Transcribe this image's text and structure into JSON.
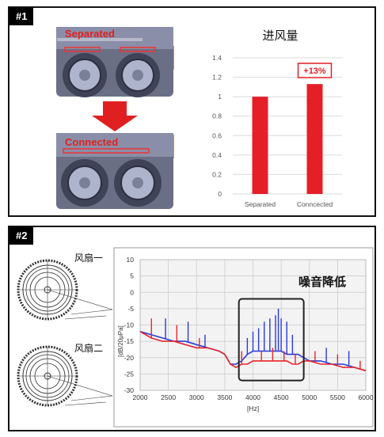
{
  "panel1": {
    "tag": "#1",
    "label_top": "Separated",
    "label_bottom": "Connected",
    "chart_title": "进风量",
    "badge": "+13%"
  },
  "panel2": {
    "tag": "#2",
    "fan1_label": "风扇一",
    "fan2_label": "风扇二",
    "annotation": "噪音降低",
    "ylabel": "[dB/20μPa]",
    "xlabel": "[Hz]"
  },
  "colors": {
    "red_bar": "#e41f26",
    "red_series": "#e8262c",
    "blue_series": "#2b3ad8",
    "highlight_box": "#222222"
  },
  "chart_data": [
    {
      "type": "bar",
      "title": "进风量",
      "categories": [
        "Separated",
        "Conncected"
      ],
      "values": [
        1.0,
        1.13
      ],
      "ylim": [
        0,
        1.4
      ],
      "yticks": [
        0,
        0.2,
        0.4,
        0.6,
        0.8,
        1,
        1.2,
        1.4
      ],
      "annotation": "+13%",
      "grid": true
    },
    {
      "type": "line",
      "xlabel": "[Hz]",
      "ylabel": "[dB/20μPa]",
      "xlim": [
        2000,
        6000
      ],
      "ylim": [
        -30,
        10
      ],
      "xticks": [
        2000,
        2500,
        3000,
        3500,
        4000,
        4500,
        5000,
        5500,
        6000
      ],
      "yticks": [
        10,
        5,
        0,
        -5,
        -10,
        -15,
        -20,
        -25,
        -30
      ],
      "grid": true,
      "annotation": "噪音降低",
      "highlight_range_x": [
        3750,
        4900
      ],
      "highlight_range_y": [
        -27,
        -2
      ],
      "series": [
        {
          "color": "#2b3ad8",
          "x": [
            2000,
            2200,
            2400,
            2600,
            2800,
            3000,
            3200,
            3400,
            3500,
            3600,
            3700,
            3800,
            3900,
            4000,
            4100,
            4200,
            4300,
            4400,
            4500,
            4600,
            4700,
            4800,
            4900,
            5000,
            5200,
            5400,
            5600,
            5800,
            6000
          ],
          "y": [
            -12,
            -13,
            -14,
            -15,
            -15,
            -16,
            -17,
            -18,
            -19,
            -22,
            -22,
            -21,
            -19,
            -18,
            -18,
            -18,
            -18,
            -18,
            -18,
            -19,
            -19,
            -19,
            -20,
            -21,
            -21,
            -22,
            -22,
            -23,
            -24
          ],
          "spikes": [
            [
              2450,
              -8
            ],
            [
              2850,
              -9
            ],
            [
              3150,
              -13
            ],
            [
              3900,
              -14
            ],
            [
              4000,
              -12
            ],
            [
              4100,
              -11
            ],
            [
              4200,
              -9
            ],
            [
              4300,
              -8
            ],
            [
              4400,
              -7
            ],
            [
              4450,
              -5
            ],
            [
              4500,
              -8
            ],
            [
              4600,
              -9
            ],
            [
              4700,
              -13
            ],
            [
              4900,
              -15
            ],
            [
              5300,
              -17
            ],
            [
              5700,
              -18
            ]
          ]
        },
        {
          "color": "#e8262c",
          "x": [
            2000,
            2200,
            2400,
            2600,
            2800,
            3000,
            3200,
            3400,
            3500,
            3600,
            3700,
            3800,
            3900,
            4000,
            4100,
            4200,
            4300,
            4400,
            4500,
            4600,
            4700,
            4800,
            4900,
            5000,
            5200,
            5400,
            5600,
            5800,
            6000
          ],
          "y": [
            -12,
            -14,
            -15,
            -15,
            -16,
            -17,
            -17,
            -18,
            -19,
            -22,
            -23,
            -22,
            -22,
            -21,
            -21,
            -21,
            -21,
            -21,
            -21,
            -21,
            -22,
            -22,
            -21,
            -21,
            -22,
            -22,
            -23,
            -23,
            -24
          ],
          "spikes": [
            [
              2200,
              -8
            ],
            [
              2650,
              -10
            ],
            [
              3050,
              -14
            ],
            [
              3800,
              -18
            ],
            [
              4150,
              -18
            ],
            [
              4350,
              -17
            ],
            [
              4550,
              -18
            ],
            [
              4750,
              -19
            ],
            [
              5100,
              -18
            ],
            [
              5500,
              -19
            ],
            [
              5900,
              -21
            ]
          ]
        }
      ]
    }
  ]
}
